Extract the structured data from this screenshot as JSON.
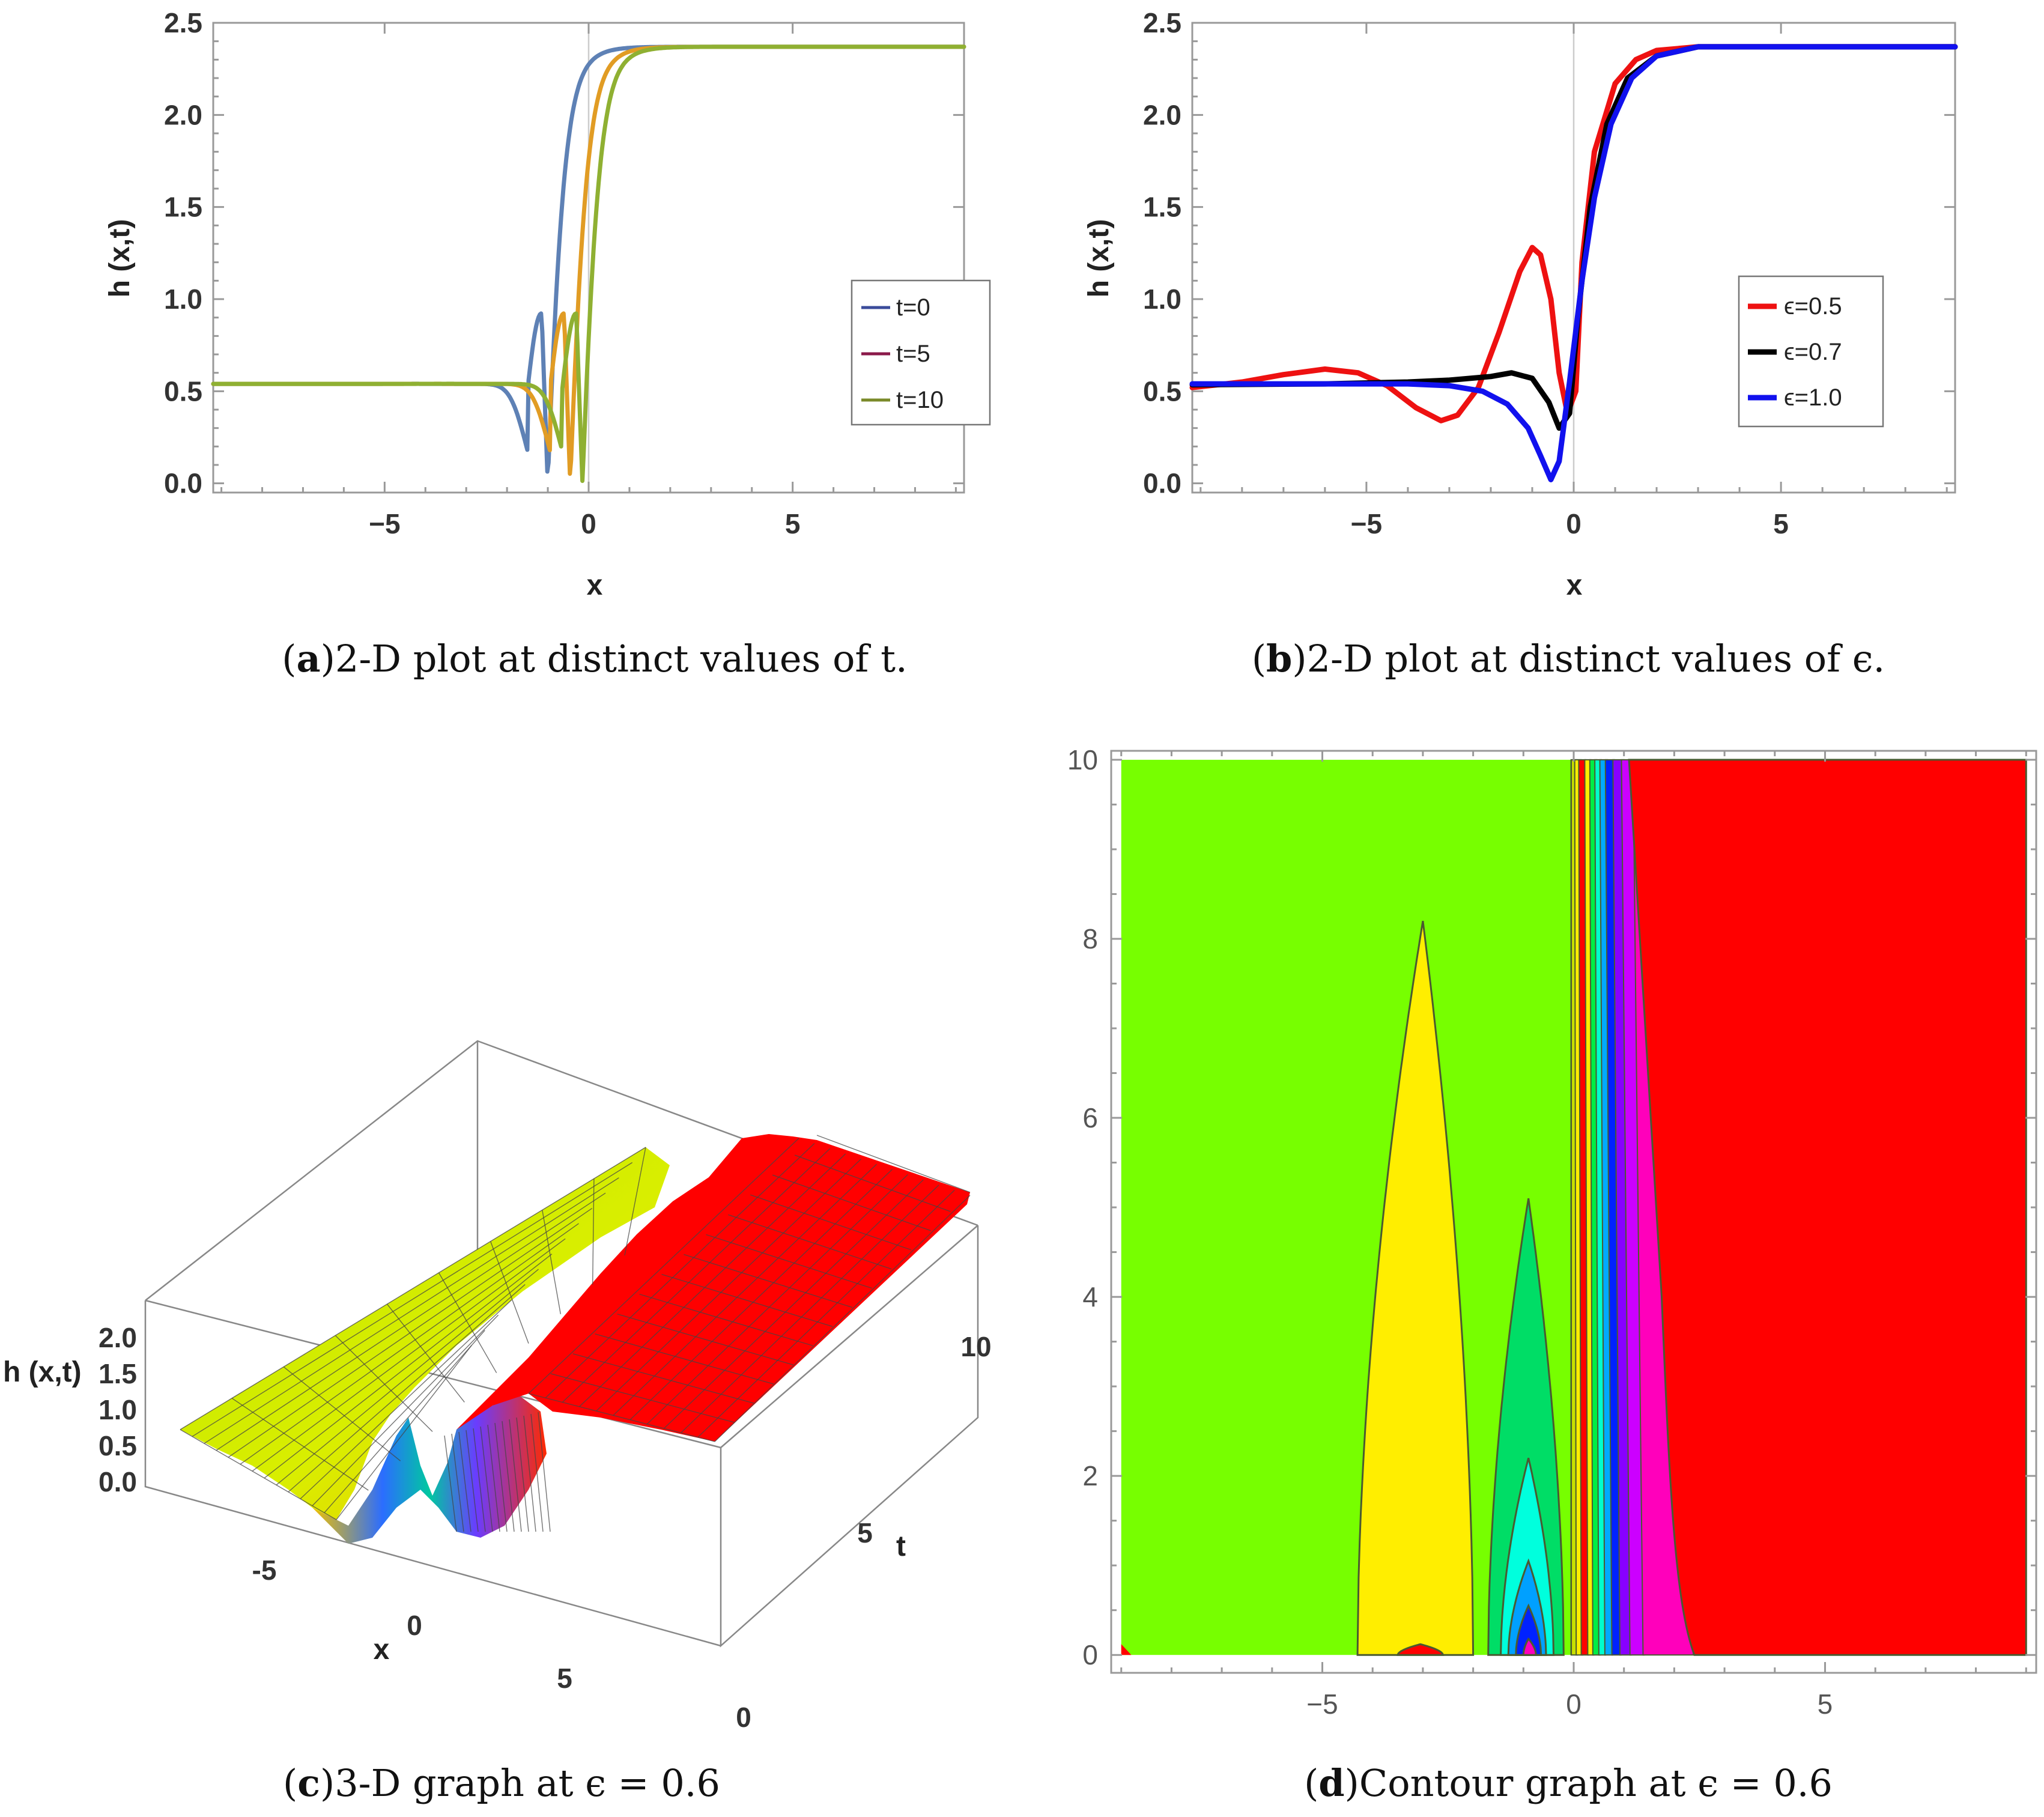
{
  "panels": {
    "a": {
      "letter": "a",
      "caption": "2-D plot at distinct values of t."
    },
    "b": {
      "letter": "b",
      "caption": "2-D plot at distinct values of ϵ."
    },
    "c": {
      "letter": "c",
      "caption": "3-D graph at ϵ = 0.6"
    },
    "d": {
      "letter": "d",
      "caption": "Contour graph at ϵ = 0.6"
    }
  },
  "chart_data": [
    {
      "id": "a",
      "type": "line",
      "xlabel": "x",
      "ylabel": "h (x,t)",
      "xlim": [
        -9.2,
        9.2
      ],
      "ylim": [
        -0.05,
        2.5
      ],
      "x_ticks": [
        "-5",
        "0",
        "5"
      ],
      "x_tick_values": [
        -5,
        0,
        5
      ],
      "y_ticks": [
        "0.0",
        "0.5",
        "1.0",
        "1.5",
        "2.0",
        "2.5"
      ],
      "y_tick_values": [
        0,
        0.5,
        1,
        1.5,
        2,
        2.5
      ],
      "legend_position": "right",
      "series": [
        {
          "name": "t=0",
          "color": "#5e81b5",
          "params": {
            "shift": -1.15,
            "low": 0.54,
            "high": 2.37,
            "width": 0.75
          }
        },
        {
          "name": "t=5",
          "color": "#e19c24",
          "params": {
            "shift": -0.6,
            "low": 0.54,
            "high": 2.37,
            "width": 0.75
          }
        },
        {
          "name": "t=10",
          "color": "#8fb032",
          "params": {
            "shift": -0.3,
            "low": 0.54,
            "high": 2.37,
            "width": 0.75
          }
        }
      ],
      "legend_swatch_colors": [
        "#3b4c9b",
        "#8b1a4a",
        "#7a8a2a"
      ]
    },
    {
      "id": "b",
      "type": "line",
      "xlabel": "x",
      "ylabel": "h (x,t)",
      "xlim": [
        -9.2,
        9.2
      ],
      "ylim": [
        -0.05,
        2.5
      ],
      "x_ticks": [
        "-5",
        "0",
        "5"
      ],
      "x_tick_values": [
        -5,
        0,
        5
      ],
      "y_ticks": [
        "0.0",
        "0.5",
        "1.0",
        "1.5",
        "2.0",
        "2.5"
      ],
      "y_tick_values": [
        0,
        0.5,
        1,
        1.5,
        2,
        2.5
      ],
      "legend_position": "right",
      "series": [
        {
          "name": "ϵ=0.5",
          "color": "#ee1111",
          "points": [
            [
              -9.2,
              0.52
            ],
            [
              -8,
              0.55
            ],
            [
              -7,
              0.59
            ],
            [
              -6,
              0.62
            ],
            [
              -5.2,
              0.6
            ],
            [
              -4.5,
              0.53
            ],
            [
              -3.8,
              0.41
            ],
            [
              -3.2,
              0.34
            ],
            [
              -2.8,
              0.37
            ],
            [
              -2.3,
              0.52
            ],
            [
              -1.8,
              0.82
            ],
            [
              -1.3,
              1.15
            ],
            [
              -1.0,
              1.28
            ],
            [
              -0.8,
              1.24
            ],
            [
              -0.55,
              1.0
            ],
            [
              -0.35,
              0.6
            ],
            [
              -0.15,
              0.38
            ],
            [
              0.05,
              0.5
            ],
            [
              0.2,
              1.2
            ],
            [
              0.5,
              1.8
            ],
            [
              1.0,
              2.17
            ],
            [
              1.5,
              2.3
            ],
            [
              2.0,
              2.35
            ],
            [
              3.0,
              2.37
            ],
            [
              5,
              2.37
            ],
            [
              9.2,
              2.37
            ]
          ]
        },
        {
          "name": "ϵ=0.7",
          "color": "#000000",
          "points": [
            [
              -9.2,
              0.535
            ],
            [
              -6,
              0.54
            ],
            [
              -4,
              0.55
            ],
            [
              -3,
              0.56
            ],
            [
              -2,
              0.58
            ],
            [
              -1.5,
              0.6
            ],
            [
              -1.0,
              0.57
            ],
            [
              -0.6,
              0.44
            ],
            [
              -0.35,
              0.3
            ],
            [
              -0.1,
              0.38
            ],
            [
              0.1,
              0.9
            ],
            [
              0.4,
              1.5
            ],
            [
              0.8,
              1.95
            ],
            [
              1.3,
              2.2
            ],
            [
              2.0,
              2.32
            ],
            [
              3.0,
              2.37
            ],
            [
              9.2,
              2.37
            ]
          ]
        },
        {
          "name": "ϵ=1.0",
          "color": "#1111ee",
          "points": [
            [
              -9.2,
              0.54
            ],
            [
              -4,
              0.54
            ],
            [
              -3,
              0.53
            ],
            [
              -2.2,
              0.5
            ],
            [
              -1.6,
              0.43
            ],
            [
              -1.1,
              0.3
            ],
            [
              -0.8,
              0.15
            ],
            [
              -0.55,
              0.02
            ],
            [
              -0.35,
              0.12
            ],
            [
              -0.1,
              0.55
            ],
            [
              0.2,
              1.1
            ],
            [
              0.5,
              1.55
            ],
            [
              0.9,
              1.95
            ],
            [
              1.4,
              2.2
            ],
            [
              2.0,
              2.32
            ],
            [
              3.0,
              2.37
            ],
            [
              9.2,
              2.37
            ]
          ]
        }
      ]
    },
    {
      "id": "c",
      "type": "surface3d",
      "xlabel": "x",
      "ylabel": "t",
      "zlabel": "h (x,t)",
      "x_ticks": [
        "-5",
        "0",
        "5"
      ],
      "t_ticks": [
        "0",
        "5",
        "10"
      ],
      "z_ticks": [
        "0.0",
        "0.5",
        "1.0",
        "1.5",
        "2.0"
      ]
    },
    {
      "id": "d",
      "type": "contour",
      "xlim": [
        -9.2,
        9.2
      ],
      "ylim": [
        -0.2,
        10.1
      ],
      "x_ticks": [
        "-5",
        "0",
        "5"
      ],
      "x_tick_values": [
        -5,
        0,
        5
      ],
      "y_ticks": [
        "0",
        "2",
        "4",
        "6",
        "8",
        "10"
      ],
      "y_tick_values": [
        0,
        2,
        4,
        6,
        8,
        10
      ],
      "region_colors": {
        "background": "#77ff00",
        "yellow": "#ffee00",
        "red": "#ff0000",
        "green": "#00dd66",
        "cyan": "#00ffdd",
        "blue": "#0022ff",
        "magenta": "#ff00bb"
      },
      "features": {
        "yellow_peak": {
          "x_left": -4.3,
          "x_right": -2.0,
          "peak_t": 8.2,
          "peak_x": -3.0
        },
        "green_peak": {
          "x_left": -1.7,
          "x_right": -0.2,
          "peak_t": 5.1,
          "peak_x": -0.9
        },
        "cyan_peak": {
          "peak_t": 2.2
        },
        "blue_peak": {
          "peak_t": 1.05
        },
        "red_boundary": {
          "x_at_t0": 2.4,
          "x_at_t10": 1.1
        }
      }
    }
  ]
}
